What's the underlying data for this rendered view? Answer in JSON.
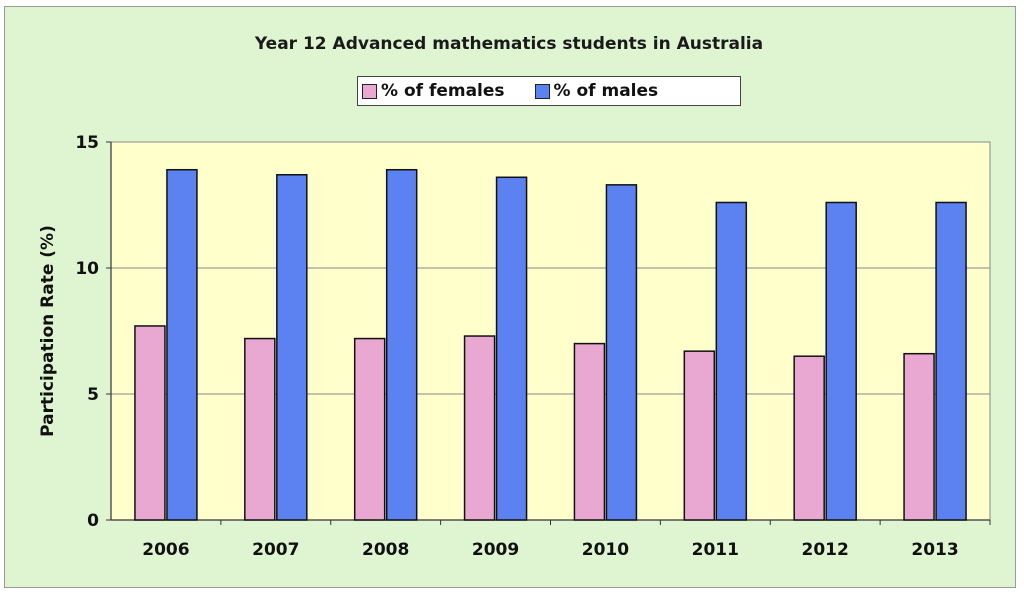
{
  "chart_data": {
    "type": "bar",
    "title": "Year 12 Advanced mathematics students in Australia",
    "ylabel": "Participation Rate (%)",
    "xlabel": "",
    "ylim": [
      0,
      15
    ],
    "yticks": [
      0,
      5,
      10,
      15
    ],
    "grid": true,
    "legend_position": "top",
    "categories": [
      "2006",
      "2007",
      "2008",
      "2009",
      "2010",
      "2011",
      "2012",
      "2013"
    ],
    "series": [
      {
        "name": "% of females",
        "color": "#e8a8d2",
        "values": [
          7.7,
          7.2,
          7.2,
          7.3,
          7.0,
          6.7,
          6.5,
          6.6
        ]
      },
      {
        "name": "% of males",
        "color": "#5b82f0",
        "values": [
          13.9,
          13.7,
          13.9,
          13.6,
          13.3,
          12.6,
          12.6,
          12.6
        ]
      }
    ],
    "plot_background": "#ffffcc"
  }
}
